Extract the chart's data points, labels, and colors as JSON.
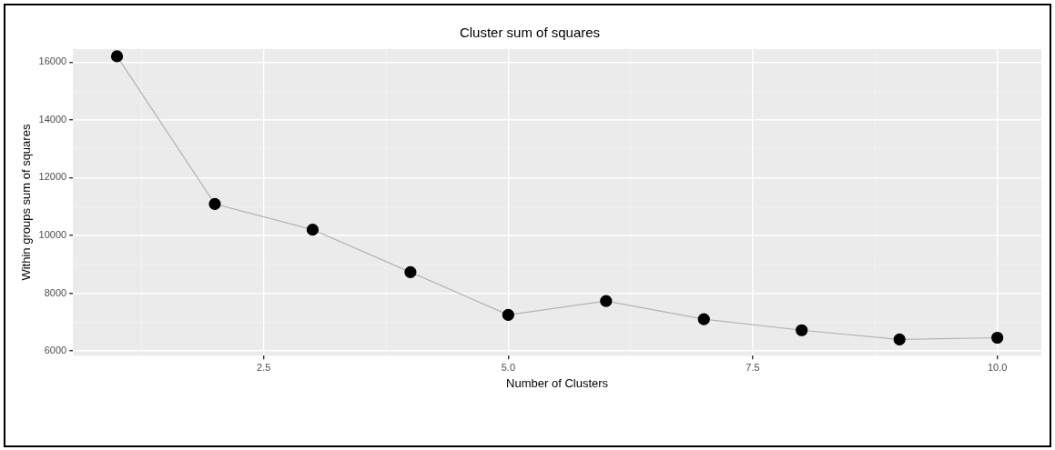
{
  "chart_data": {
    "type": "line",
    "title": "Cluster sum of squares",
    "xlabel": "Number of Clusters",
    "ylabel": "Within groups sum of squares",
    "x": [
      1,
      2,
      3,
      4,
      5,
      6,
      7,
      8,
      9,
      10
    ],
    "series": [
      {
        "color": "#000000",
        "values": [
          16200,
          11090,
          10200,
          8730,
          7250,
          7730,
          7100,
          6720,
          6400,
          6460
        ]
      }
    ],
    "xlim": [
      0.55,
      10.45
    ],
    "xticks": [
      {
        "value": 1.25,
        "label": null
      },
      {
        "value": 2.5,
        "label": "2.5"
      },
      {
        "value": 3.75,
        "label": null
      },
      {
        "value": 5,
        "label": "5.0"
      },
      {
        "value": 6.25,
        "label": null
      },
      {
        "value": 7.5,
        "label": "7.5"
      },
      {
        "value": 8.75,
        "label": null
      },
      {
        "value": 10,
        "label": "10.0"
      }
    ],
    "ylim": [
      5840,
      16450
    ],
    "yticks": [
      6000,
      {
        "value": 7000,
        "label": null
      },
      8000,
      {
        "value": 9000,
        "label": null
      },
      10000,
      {
        "value": 11000,
        "label": null
      },
      12000,
      {
        "value": 13000,
        "label": null
      },
      14000,
      {
        "value": 15000,
        "label": null
      },
      16000
    ],
    "grid": true,
    "legend": false,
    "marker": "circle",
    "line_style": "solid"
  }
}
